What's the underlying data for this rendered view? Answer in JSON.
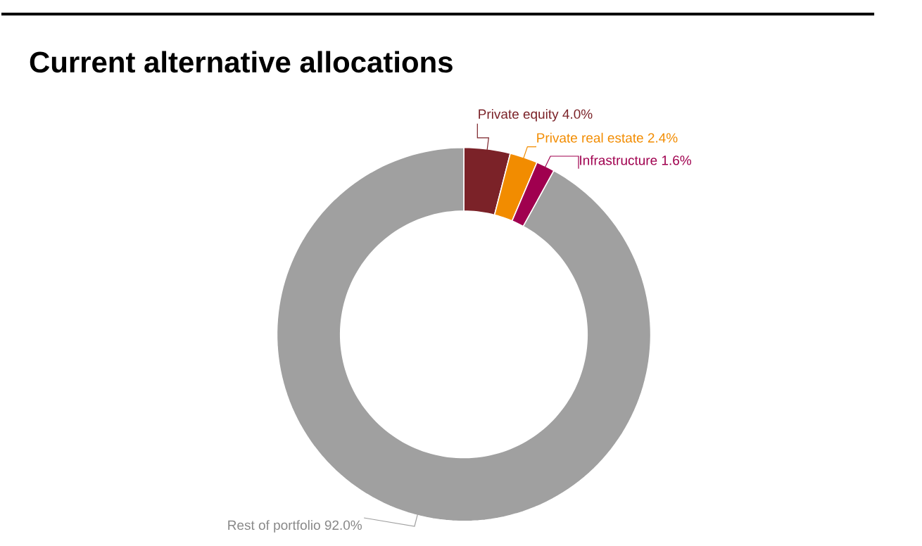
{
  "chart_data": {
    "type": "donut",
    "title": "Current alternative allocations",
    "categories": [
      "Private equity",
      "Private real estate",
      "Infrastructure",
      "Rest of portfolio"
    ],
    "values": [
      4.0,
      2.4,
      1.6,
      92.0
    ],
    "value_labels": [
      "4.0%",
      "2.4%",
      "1.6%",
      "92.0%"
    ],
    "colors": [
      "#7b2228",
      "#f28c00",
      "#a0004f",
      "#a0a0a0"
    ]
  }
}
